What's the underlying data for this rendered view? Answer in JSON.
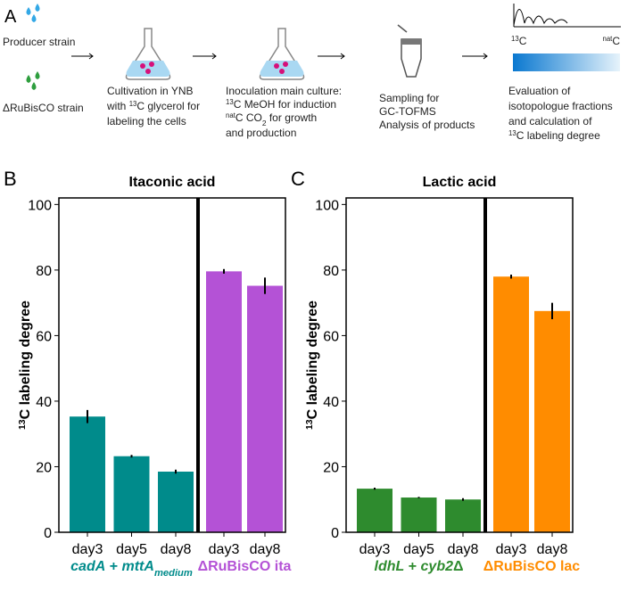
{
  "panel_a": {
    "label": "A",
    "strains": [
      "Producer strain",
      "ΔRuBisCO strain"
    ],
    "steps": [
      [
        "Cultivation in YNB",
        [
          "with ",
          {
            "text": "13",
            "sup": true
          },
          "C glycerol for"
        ],
        "labeling the cells"
      ],
      [
        "Inoculation main culture:",
        [
          {
            "text": "13",
            "sup": true
          },
          "C MeOH for induction"
        ],
        [
          {
            "text": "nat",
            "sup": true
          },
          "C CO",
          {
            "text": "2",
            "sub": true
          },
          " for growth"
        ],
        "and production"
      ],
      [
        "Sampling for",
        "GC-TOFMS",
        "Analysis of products"
      ],
      [
        "Evaluation of",
        "isotopologue fractions",
        "and calculation of",
        [
          {
            "text": "13",
            "sup": true
          },
          "C labeling degree"
        ]
      ]
    ],
    "gradient_labels": [
      [
        {
          "text": "13",
          "sup": true
        },
        "C"
      ],
      [
        {
          "text": "nat",
          "sup": true
        },
        "C"
      ]
    ]
  },
  "chart_data": [
    {
      "type": "bar",
      "panel": "B",
      "title": "Itaconic acid",
      "ylabel": [
        {
          "text": "13",
          "sup": true
        },
        "C labeling degree"
      ],
      "ylim": [
        0,
        102
      ],
      "yticks": [
        0,
        20,
        40,
        60,
        80,
        100
      ],
      "groups": [
        {
          "name": [
            {
              "text": "cadA",
              "italic": true
            },
            " + ",
            {
              "text": "mttA",
              "italic": true
            },
            {
              "text": "medium",
              "italic": true,
              "sub": true
            }
          ],
          "color": "#008b8b",
          "categories": [
            "day3",
            "day5",
            "day8"
          ],
          "values": [
            35.3,
            23.2,
            18.5
          ],
          "errors": [
            2,
            0.4,
            0.6
          ]
        },
        {
          "name": [
            "ΔRuBisCO ita"
          ],
          "color": "#b452d6",
          "categories": [
            "day3",
            "day8"
          ],
          "values": [
            79.6,
            75.2
          ],
          "errors": [
            0.7,
            2.5
          ]
        }
      ]
    },
    {
      "type": "bar",
      "panel": "C",
      "title": "Lactic acid",
      "ylabel": [
        {
          "text": "13",
          "sup": true
        },
        "C labeling degree"
      ],
      "ylim": [
        0,
        102
      ],
      "yticks": [
        0,
        20,
        40,
        60,
        80,
        100
      ],
      "groups": [
        {
          "name": [
            {
              "text": "ldhL",
              "italic": true
            },
            " + ",
            {
              "text": "cyb2",
              "italic": true
            },
            "Δ"
          ],
          "color": "#2e8b2e",
          "categories": [
            "day3",
            "day5",
            "day8"
          ],
          "values": [
            13.3,
            10.6,
            10.0
          ],
          "errors": [
            0.3,
            0.2,
            0.4
          ]
        },
        {
          "name": [
            "ΔRuBisCO lac"
          ],
          "color": "#ff8c00",
          "categories": [
            "day3",
            "day8"
          ],
          "values": [
            78.0,
            67.5
          ],
          "errors": [
            0.6,
            2.5
          ]
        }
      ]
    }
  ]
}
